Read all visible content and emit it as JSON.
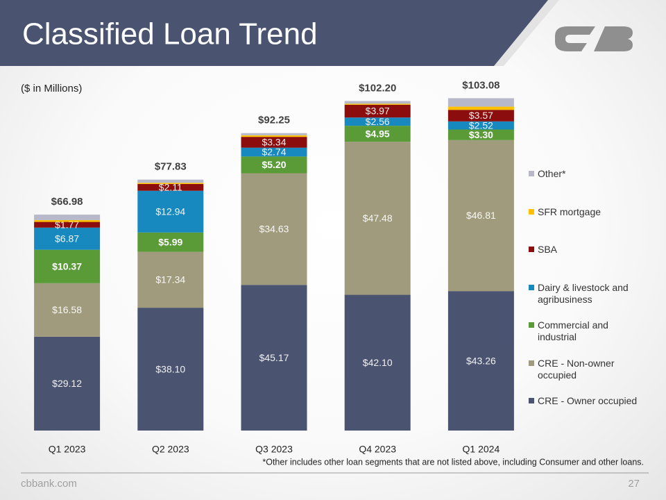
{
  "title": "Classified Loan Trend",
  "footer": {
    "site": "cbbank.com",
    "page": "27"
  },
  "chart_data": {
    "type": "stacked_bar",
    "subtitle": "($ in Millions)",
    "footnote": "*Other includes other loan segments that are not listed above, including Consumer and other loans.",
    "categories": [
      "Q1 2023",
      "Q2 2023",
      "Q3 2023",
      "Q4 2023",
      "Q1 2024"
    ],
    "ylim": [
      0,
      112
    ],
    "legend": "right",
    "series": [
      {
        "name": "CRE - Owner occupied",
        "color": "#4a5470",
        "values": [
          29.12,
          38.1,
          45.17,
          42.1,
          43.26
        ],
        "value_labels": [
          "$29.12",
          "$38.10",
          "$45.17",
          "$42.10",
          "$43.26"
        ],
        "label_bold": false
      },
      {
        "name": "CRE - Non-owner occupied",
        "color": "#a19b7d",
        "values": [
          16.58,
          17.34,
          34.63,
          47.48,
          46.81
        ],
        "value_labels": [
          "$16.58",
          "$17.34",
          "$34.63",
          "$47.48",
          "$46.81"
        ],
        "label_bold": false
      },
      {
        "name": "Commercial and industrial",
        "color": "#5a9b37",
        "values": [
          10.37,
          5.99,
          5.2,
          4.95,
          3.3
        ],
        "value_labels": [
          "$10.37",
          "$5.99",
          "$5.20",
          "$4.95",
          "$3.30"
        ],
        "label_bold": true
      },
      {
        "name": "Dairy & livestock and agribusiness",
        "color": "#1789bf",
        "values": [
          6.87,
          12.94,
          2.74,
          2.56,
          2.52
        ],
        "value_labels": [
          "$6.87",
          "$12.94",
          "$2.74",
          "$2.56",
          "$2.52"
        ],
        "label_bold": false
      },
      {
        "name": "SBA",
        "color": "#8c0d0d",
        "values": [
          1.77,
          2.11,
          3.34,
          3.97,
          3.57
        ],
        "value_labels": [
          "$1.77",
          "$2.11",
          "$3.34",
          "$3.97",
          "$3.57"
        ],
        "label_bold": false
      },
      {
        "name": "SFR mortgage",
        "color": "#ffc000",
        "values": [
          0.56,
          0.35,
          0.5,
          0.3,
          1.0
        ]
      },
      {
        "name": "Other*",
        "color": "#b7b9ca",
        "values": [
          1.71,
          1.0,
          0.67,
          0.84,
          2.62
        ]
      }
    ],
    "totals": [
      66.98,
      77.83,
      92.25,
      102.2,
      103.08
    ],
    "total_labels": [
      "$66.98",
      "$77.83",
      "$92.25",
      "$102.20",
      "$103.08"
    ]
  }
}
